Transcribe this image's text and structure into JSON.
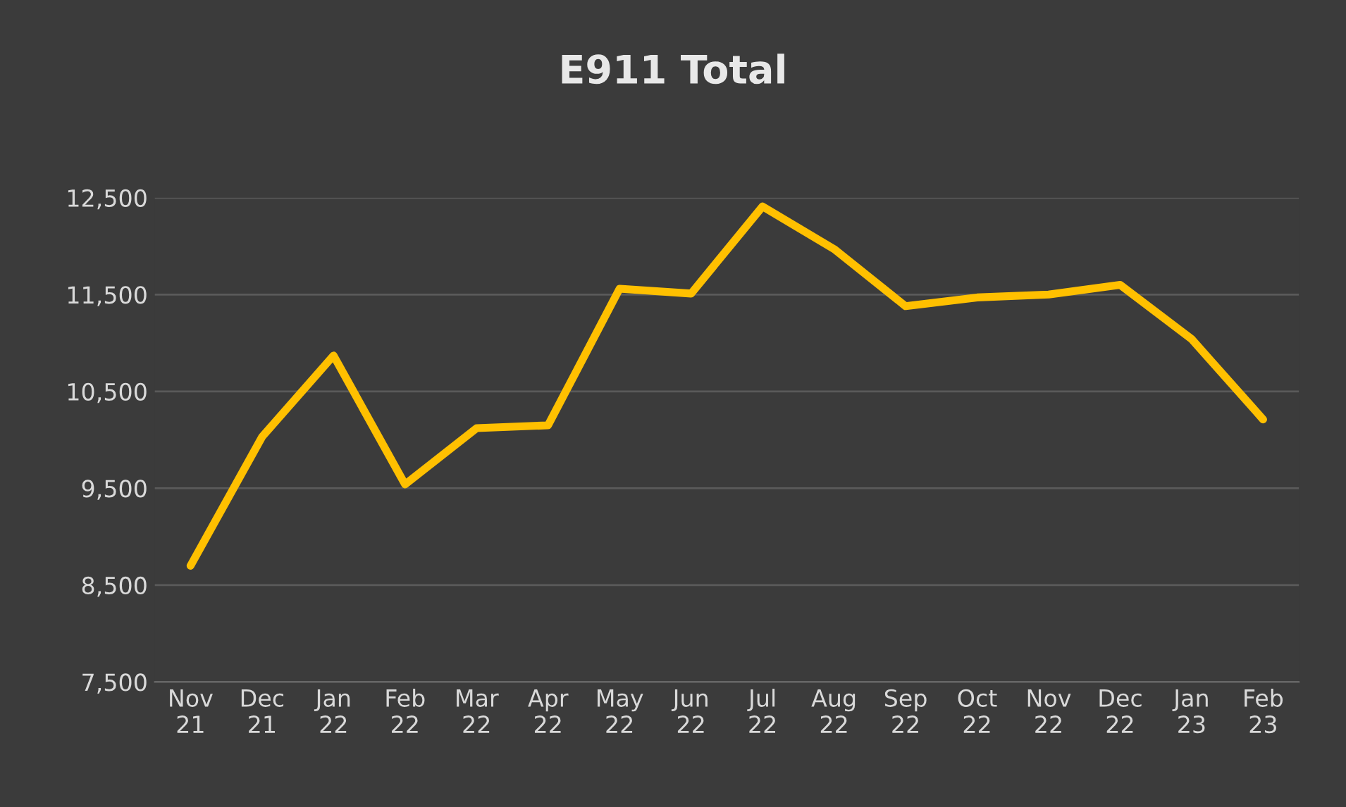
{
  "chart_data": {
    "type": "line",
    "title": "E911 Total",
    "categories": [
      "Nov\n21",
      "Dec\n21",
      "Jan\n22",
      "Feb\n22",
      "Mar\n22",
      "Apr\n22",
      "May\n22",
      "Jun\n22",
      "Jul\n22",
      "Aug\n22",
      "Sep\n22",
      "Oct\n22",
      "Nov\n22",
      "Dec\n22",
      "Jan\n23",
      "Feb\n23"
    ],
    "series": [
      {
        "color": "#ffc000",
        "values": [
          8700,
          10030,
          10870,
          9540,
          10120,
          10150,
          11560,
          11510,
          12410,
          11970,
          11380,
          11470,
          11500,
          11600,
          11040,
          10210
        ]
      }
    ],
    "ylim": [
      7500,
      12500
    ],
    "yticks": [
      {
        "value": 7500,
        "label": "7,500"
      },
      {
        "value": 8500,
        "label": "8,500"
      },
      {
        "value": 9500,
        "label": "9,500"
      },
      {
        "value": 10500,
        "label": "10,500"
      },
      {
        "value": 11500,
        "label": "11,500"
      },
      {
        "value": 12500,
        "label": "12,500"
      }
    ],
    "grid": "y",
    "legend": false,
    "marker": "none",
    "line_style": "solid"
  }
}
